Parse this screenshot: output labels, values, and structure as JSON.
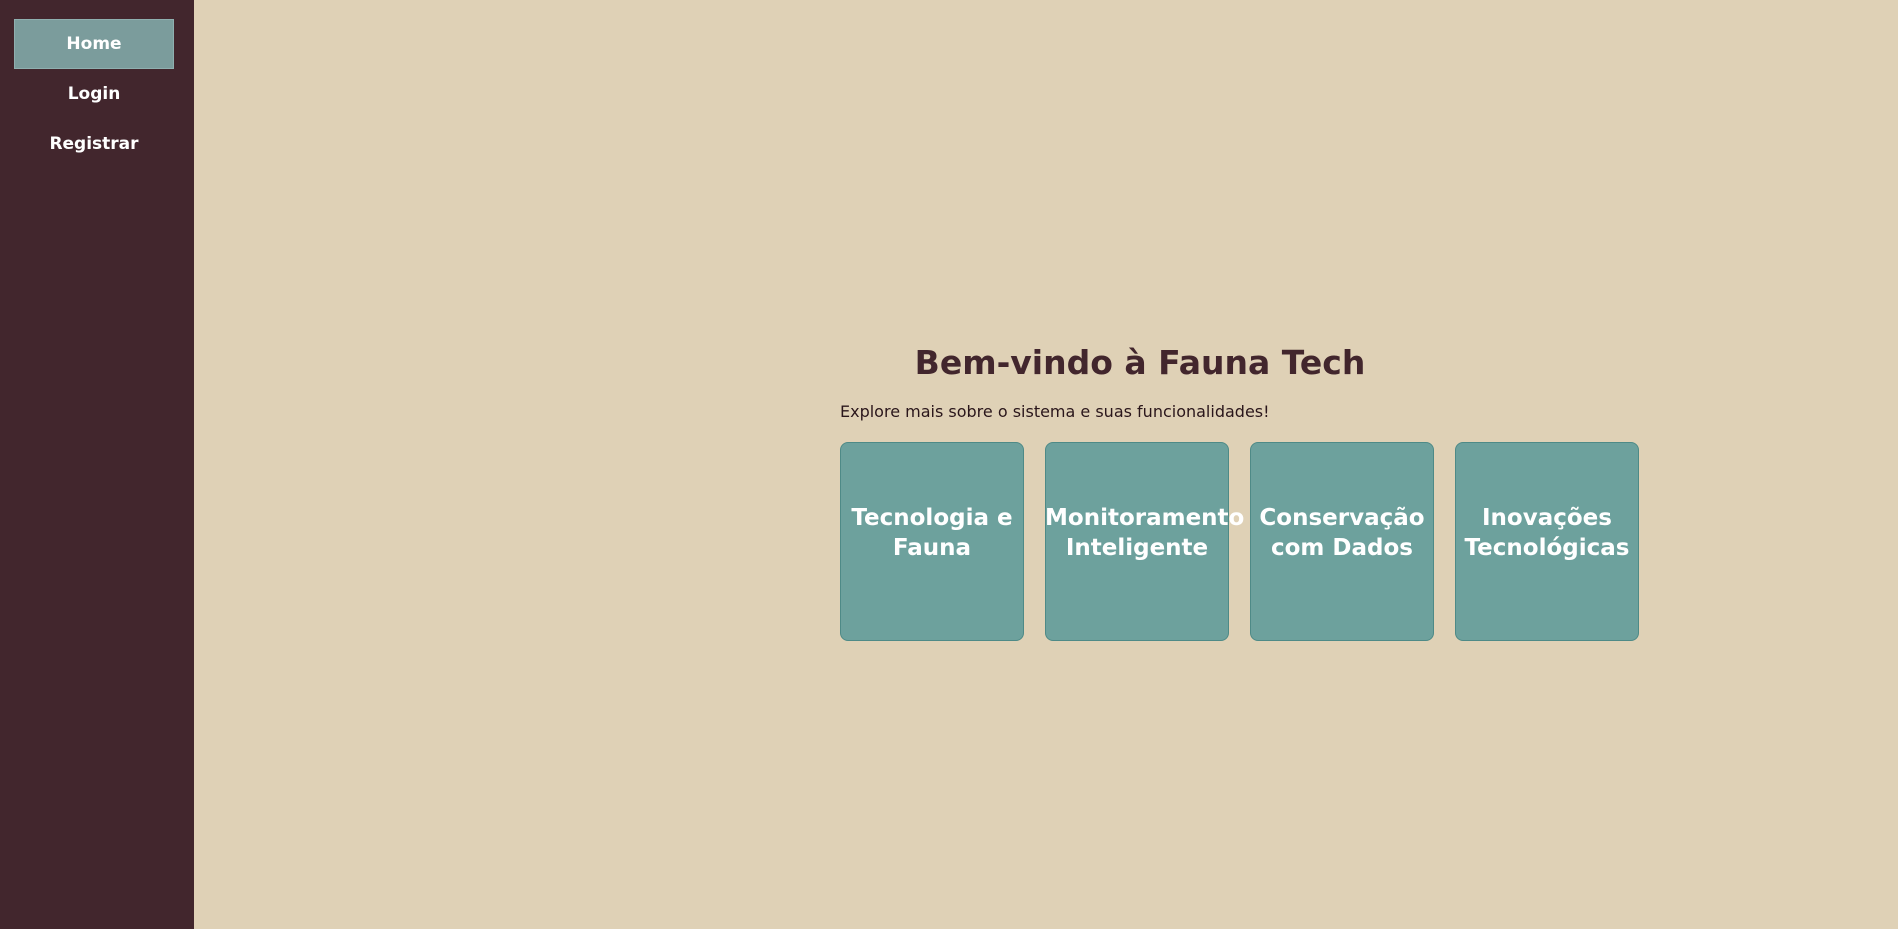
{
  "sidebar": {
    "items": [
      {
        "label": "Home",
        "active": true
      },
      {
        "label": "Login",
        "active": false
      },
      {
        "label": "Registrar",
        "active": false
      }
    ]
  },
  "main": {
    "title": "Bem-vindo à Fauna Tech",
    "subtitle": "Explore mais sobre o sistema e suas funcionalidades!",
    "cards": [
      {
        "label": "Tecnologia e\nFauna"
      },
      {
        "label": "Monitoramento\nInteligente"
      },
      {
        "label": "Conservação\ncom Dados"
      },
      {
        "label": "Inovações\nTecnológicas"
      }
    ]
  },
  "colors": {
    "sidebar_bg": "#42262D",
    "page_bg": "#DFD1B6",
    "active_nav_bg": "#7B9C9C",
    "card_bg": "#6DA19D",
    "title_color": "#42262D"
  }
}
